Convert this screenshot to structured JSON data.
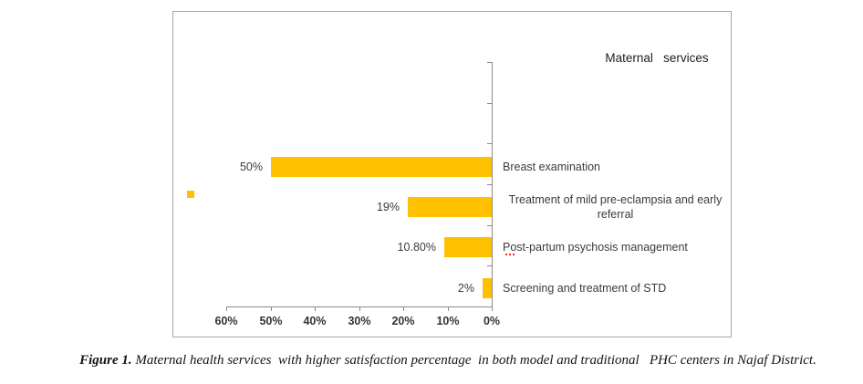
{
  "chart_data": {
    "type": "bar",
    "orientation": "horizontal",
    "title": "Maternal   services",
    "categories": [
      "Breast examination",
      "Treatment of mild pre-eclampsia and early referral",
      "Post-partum psychosis management",
      "Screening and treatment of STD"
    ],
    "values": [
      50,
      19,
      10.8,
      2
    ],
    "value_labels": [
      "50%",
      "19%",
      "10.80%",
      "2%"
    ],
    "x_tick_labels": [
      "60%",
      "50%",
      "40%",
      "30%",
      "20%",
      "10%",
      "0%"
    ],
    "xlim": [
      0,
      60
    ],
    "x_axis_reversed": true,
    "grid": false,
    "bar_color": "#FFC000",
    "legend": {
      "position": "left-middle",
      "marker_color": "#FFC000",
      "label": ""
    },
    "category_label_wraps": {
      "1": [
        "Treatment of mild pre-eclampsia and early",
        "referral"
      ]
    },
    "spellcheck_marker": {
      "category_index": 2,
      "under_text": "Po",
      "color": "#FF2B2B"
    },
    "axis_color": "#8A8A8A",
    "border_color": "#A6A6A6",
    "text_color": "#3B3B3B"
  },
  "figure": {
    "caption_label": "Figure 1.",
    "caption_text": " Maternal health services  with higher satisfaction percentage  in both model and traditional   PHC centers in Najaf District."
  }
}
